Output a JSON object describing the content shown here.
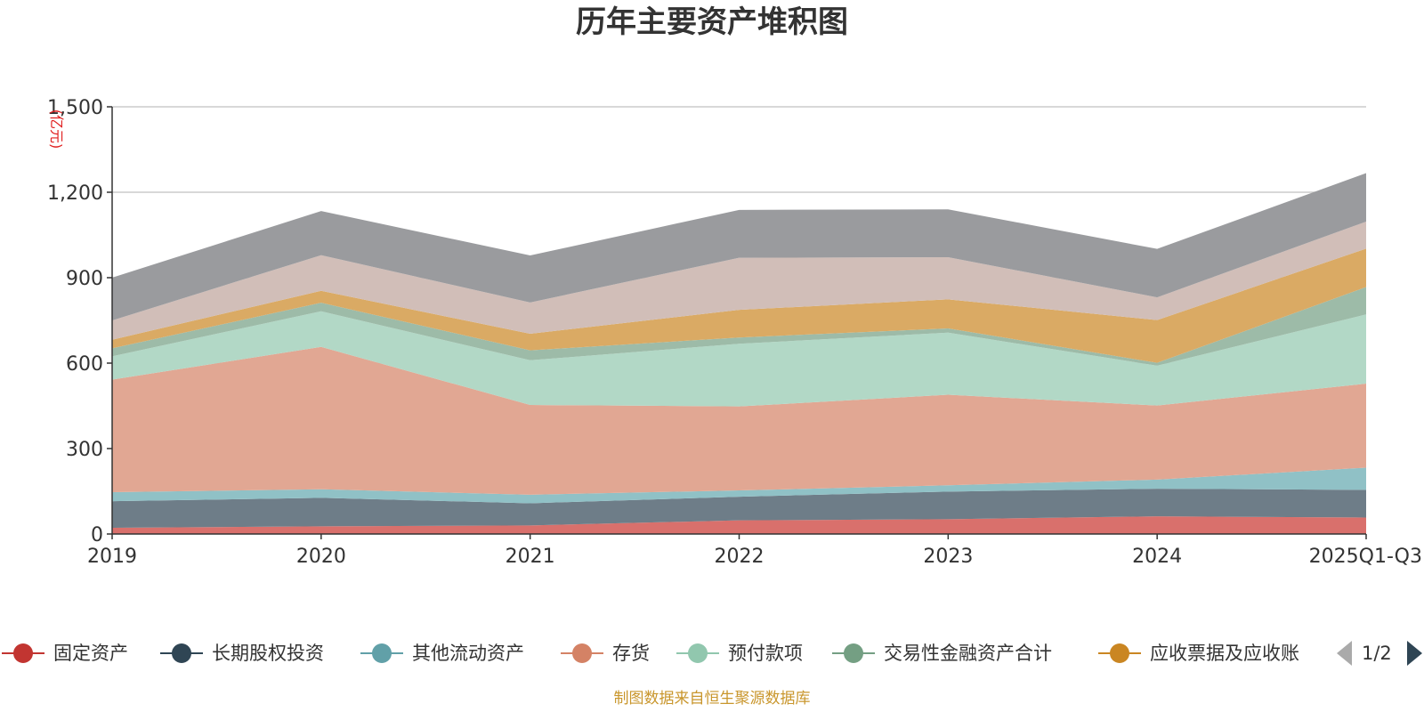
{
  "chart_data": {
    "type": "area",
    "stacked": true,
    "title": "历年主要资产堆积图",
    "unit": "(亿元)",
    "categories": [
      "2019",
      "2020",
      "2021",
      "2022",
      "2023",
      "2024",
      "2025Q1-Q3"
    ],
    "y_ticks": [
      "0",
      "300",
      "600",
      "900",
      "1,200",
      "1,500"
    ],
    "ylim": [
      0,
      1500
    ],
    "grid": true,
    "series": [
      {
        "name": "固定资产",
        "color": "#c23531",
        "fill": "#d9706c",
        "values": [
          22,
          27,
          30,
          48,
          52,
          62,
          58
        ]
      },
      {
        "name": "长期股权投资",
        "color": "#2f4554",
        "fill": "#6e7d88",
        "values": [
          93,
          100,
          78,
          83,
          97,
          97,
          97
        ]
      },
      {
        "name": "其他流动资产",
        "color": "#61a0a8",
        "fill": "#90c1c6",
        "values": [
          32,
          30,
          30,
          22,
          22,
          32,
          78
        ]
      },
      {
        "name": "存货",
        "color": "#d48265",
        "fill": "#e1a793",
        "values": [
          395,
          500,
          315,
          295,
          318,
          260,
          295
        ]
      },
      {
        "name": "预付款项",
        "color": "#91c7ae",
        "fill": "#b2d8c6",
        "values": [
          82,
          125,
          157,
          220,
          218,
          140,
          243
        ]
      },
      {
        "name": "交易性金融资产合计",
        "color": "#749f83",
        "fill": "#9dbba8",
        "values": [
          28,
          30,
          35,
          22,
          15,
          10,
          96
        ]
      },
      {
        "name": "应收票据及应收账",
        "color": "#ca8622",
        "fill": "#daaa64",
        "values": [
          30,
          42,
          58,
          97,
          102,
          150,
          135
        ]
      },
      {
        "name": "",
        "color": "#bda29a",
        "fill": "#d1beb8",
        "values": [
          68,
          125,
          110,
          183,
          148,
          80,
          95
        ]
      },
      {
        "name": "",
        "color": "#6e7074",
        "fill": "#9a9b9e",
        "values": [
          150,
          155,
          165,
          168,
          168,
          170,
          170
        ]
      }
    ]
  },
  "legend": {
    "page": "1/2"
  },
  "source": "制图数据来自恒生聚源数据库"
}
